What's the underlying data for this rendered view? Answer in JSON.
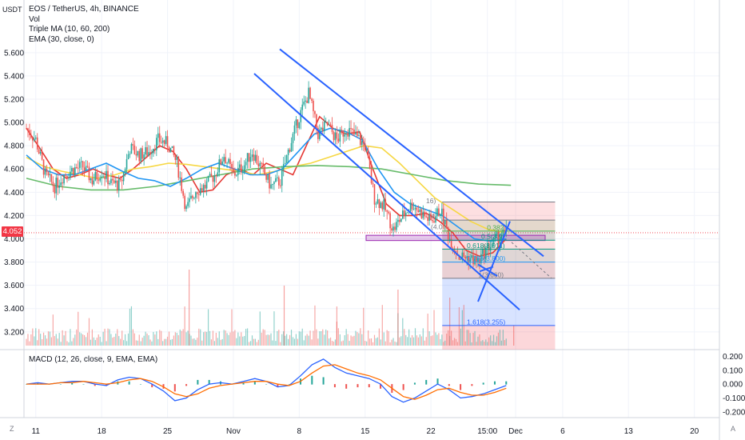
{
  "header": {
    "symbol_line": "EOS / TetherUS, 4h, BINANCE",
    "indicators": [
      "Vol",
      "Triple MA (10, 60, 200)",
      "EMA (30, close, 0)"
    ],
    "unit": "USDT",
    "current_price": "4.052",
    "macd_label": "MACD (12, 26, close, 9, EMA, EMA)",
    "corner_left": "Z",
    "corner_right": "A"
  },
  "colors": {
    "up": "#26a69a",
    "down": "#ef5350",
    "ma10": "#e53935",
    "ma60": "#f6d743",
    "ma200": "#66bb6a",
    "ema30": "#2196f3",
    "channel": "#2962ff",
    "macd": "#2962ff",
    "signal": "#ff6d00"
  },
  "chart_data": [
    {
      "type": "candlestick",
      "title": "EOS / TetherUS, 4h, BINANCE",
      "x_ticks": [
        "11",
        "18",
        "25",
        "Nov",
        "8",
        "15",
        "22",
        "15:00",
        "Dec",
        "6",
        "13",
        "20"
      ],
      "y_ticks": [
        "5.600",
        "5.400",
        "5.200",
        "5.000",
        "4.800",
        "4.600",
        "4.400",
        "4.200",
        "4.000",
        "3.800",
        "3.600",
        "3.400",
        "3.200"
      ],
      "ylim": [
        3.13,
        5.75
      ],
      "current_price": 4.052,
      "close_path": [
        [
          "Oct 10",
          4.95
        ],
        [
          "Oct 11",
          4.85
        ],
        [
          "Oct 12",
          4.55
        ],
        [
          "Oct 13",
          4.45
        ],
        [
          "Oct 14",
          4.55
        ],
        [
          "Oct 15",
          4.6
        ],
        [
          "Oct 16",
          4.62
        ],
        [
          "Oct 17",
          4.5
        ],
        [
          "Oct 18",
          4.58
        ],
        [
          "Oct 19",
          4.48
        ],
        [
          "Oct 20",
          4.46
        ],
        [
          "Oct 21",
          4.78
        ],
        [
          "Oct 22",
          4.72
        ],
        [
          "Oct 23",
          4.75
        ],
        [
          "Oct 24",
          4.85
        ],
        [
          "Oct 25",
          4.82
        ],
        [
          "Oct 26",
          4.65
        ],
        [
          "Oct 27",
          4.25
        ],
        [
          "Oct 28",
          4.42
        ],
        [
          "Oct 29",
          4.45
        ],
        [
          "Oct 30",
          4.55
        ],
        [
          "Oct 31",
          4.72
        ],
        [
          "Nov 1",
          4.55
        ],
        [
          "Nov 2",
          4.62
        ],
        [
          "Nov 3",
          4.75
        ],
        [
          "Nov 4",
          4.6
        ],
        [
          "Nov 5",
          4.45
        ],
        [
          "Nov 6",
          4.5
        ],
        [
          "Nov 7",
          4.8
        ],
        [
          "Nov 8",
          5.05
        ],
        [
          "Nov 9",
          5.25
        ],
        [
          "Nov 10",
          4.9
        ],
        [
          "Nov 11",
          4.98
        ],
        [
          "Nov 12",
          4.85
        ],
        [
          "Nov 13",
          4.95
        ],
        [
          "Nov 14",
          4.88
        ],
        [
          "Nov 15",
          4.8
        ],
        [
          "Nov 16",
          4.35
        ],
        [
          "Nov 17",
          4.28
        ],
        [
          "Nov 18",
          4.08
        ],
        [
          "Nov 19",
          4.2
        ],
        [
          "Nov 20",
          4.3
        ],
        [
          "Nov 21",
          4.22
        ],
        [
          "Nov 22",
          4.15
        ],
        [
          "Nov 23",
          4.25
        ],
        [
          "Nov 24",
          4.0
        ],
        [
          "Nov 25",
          3.85
        ],
        [
          "Nov 26",
          3.84
        ],
        [
          "Nov 27",
          3.8
        ],
        [
          "Nov 28",
          3.92
        ],
        [
          "Nov 29",
          4.0
        ],
        [
          "Nov 30",
          4.05
        ]
      ],
      "moving_averages": [
        {
          "name": "MA 10",
          "color": "#e53935",
          "values": [
            4.95,
            4.78,
            4.6,
            4.52,
            4.55,
            4.6,
            4.55,
            4.52,
            4.6,
            4.7,
            4.8,
            4.75,
            4.6,
            4.4,
            4.42,
            4.55,
            4.6,
            4.55,
            4.65,
            4.6,
            4.55,
            4.8,
            5.05,
            4.95,
            4.9,
            4.92,
            4.6,
            4.3,
            4.2,
            4.2,
            4.22,
            4.15,
            4.05,
            3.9,
            3.85,
            3.88,
            4.0
          ]
        },
        {
          "name": "MA 60",
          "color": "#f6d743",
          "values": [
            4.7,
            4.62,
            4.58,
            4.55,
            4.52,
            4.55,
            4.6,
            4.62,
            4.65,
            4.64,
            4.62,
            4.6,
            4.58,
            4.55,
            4.58,
            4.62,
            4.65,
            4.7,
            4.75,
            4.8,
            4.78,
            4.65,
            4.5,
            4.35,
            4.25,
            4.15,
            4.08,
            4.05
          ]
        },
        {
          "name": "MA 200",
          "color": "#66bb6a",
          "values": [
            4.52,
            4.45,
            4.42,
            4.42,
            4.45,
            4.5,
            4.55,
            4.6,
            4.62,
            4.63,
            4.62,
            4.6,
            4.55,
            4.5,
            4.47,
            4.46
          ]
        },
        {
          "name": "EMA 30",
          "color": "#2196f3",
          "values": [
            4.72,
            4.6,
            4.55,
            4.55,
            4.6,
            4.65,
            4.58,
            4.52,
            4.5,
            4.45,
            4.52,
            4.6,
            4.65,
            4.6,
            4.55,
            4.55,
            4.6,
            4.75,
            4.9,
            4.95,
            4.92,
            4.85,
            4.6,
            4.4,
            4.3,
            4.25,
            4.2,
            4.1,
            4.0,
            3.98,
            4.0
          ]
        }
      ],
      "fibonacci": [
        {
          "label": "",
          "value": 4.316,
          "color": "#787b86"
        },
        {
          "label": "",
          "value": 4.161,
          "color": "#787b86"
        },
        {
          "label": "0.382",
          "value": 4.066,
          "color": "#4caf50"
        },
        {
          "label": "0.5(3.9",
          "value": 3.988,
          "color": "#089981"
        },
        {
          "label": "0.618(3.911)",
          "value": 3.911,
          "color": "#089981"
        },
        {
          "label": "0.786(3.800)",
          "value": 3.8,
          "color": "#2196f3"
        },
        {
          "label": "1(3.660)",
          "value": 3.66,
          "color": "#787b86"
        },
        {
          "label": "1.618(3.255)",
          "value": 3.255,
          "color": "#2962ff"
        }
      ],
      "fib_partial_labels": [
        "16)",
        "(4.",
        "(4.0"
      ],
      "annotations": [
        "descending channel upper line",
        "descending channel lower line",
        "fibonacci retracement",
        "long position zone"
      ]
    },
    {
      "type": "line",
      "title": "MACD (12, 26, close, 9, EMA, EMA)",
      "y_ticks": [
        "0.200",
        "0.100",
        "0.000",
        "-0.100",
        "-0.200"
      ],
      "ylim": [
        -0.23,
        0.22
      ],
      "series": [
        {
          "name": "",
          "color": "#2962ff",
          "values": [
            0.0,
            0.01,
            0.0,
            0.01,
            0.02,
            0.02,
            0.0,
            -0.01,
            0.03,
            0.05,
            0.04,
            0.0,
            -0.05,
            -0.12,
            -0.1,
            -0.04,
            0.0,
            0.01,
            0.0,
            0.02,
            0.04,
            0.02,
            -0.02,
            -0.01,
            0.06,
            0.14,
            0.18,
            0.12,
            0.08,
            0.06,
            0.04,
            0.0,
            -0.09,
            -0.13,
            -0.1,
            -0.05,
            0.0,
            -0.04,
            -0.1,
            -0.09,
            -0.07,
            -0.04,
            -0.01
          ]
        },
        {
          "name": "",
          "color": "#ff6d00",
          "values": [
            0.0,
            0.0,
            0.0,
            0.01,
            0.01,
            0.02,
            0.01,
            0.0,
            0.01,
            0.03,
            0.04,
            0.02,
            -0.02,
            -0.07,
            -0.09,
            -0.07,
            -0.03,
            -0.01,
            0.0,
            0.01,
            0.02,
            0.02,
            0.0,
            -0.01,
            0.02,
            0.08,
            0.13,
            0.14,
            0.11,
            0.08,
            0.06,
            0.03,
            -0.03,
            -0.09,
            -0.11,
            -0.08,
            -0.04,
            -0.03,
            -0.06,
            -0.08,
            -0.08,
            -0.06,
            -0.03
          ]
        }
      ]
    }
  ]
}
